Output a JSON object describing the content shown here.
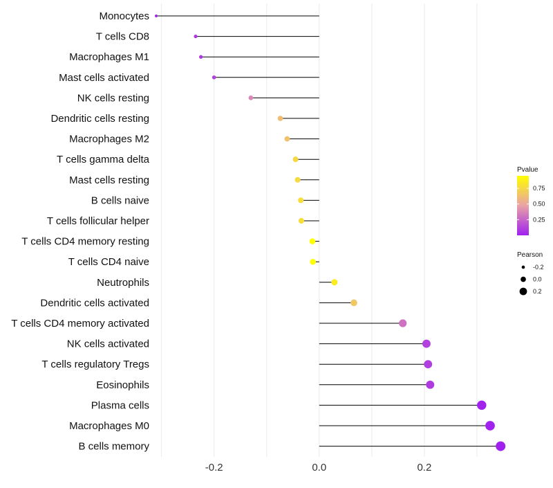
{
  "chart_data": {
    "type": "lollipop",
    "title": "",
    "xlabel": "",
    "ylabel": "",
    "xlim": [
      -0.31,
      0.35
    ],
    "x_ticks": [
      -0.2,
      0.0,
      0.2
    ],
    "x_tick_labels": [
      "-0.2",
      "0.0",
      "0.2"
    ],
    "grid": true,
    "colors": {
      "low": "#a020f0",
      "mid": "#e8a2a6",
      "high": "#ffff00",
      "stem": "#000000",
      "grid": "#ebebeb"
    },
    "categories": [
      "Monocytes",
      "T cells CD8",
      "Macrophages M1",
      "Mast cells activated",
      "NK cells resting",
      "Dendritic cells resting",
      "Macrophages M2",
      "T cells gamma delta",
      "Mast cells resting",
      "B cells naive",
      "T cells follicular helper",
      "T cells CD4 memory resting",
      "T cells CD4 naive",
      "Neutrophils",
      "Dendritic cells activated",
      "T cells CD4 memory activated",
      "NK cells activated",
      "T cells regulatory  Tregs ",
      "Eosinophils",
      "Plasma cells",
      "Macrophages M0",
      "B cells memory"
    ],
    "pearson": [
      -0.31,
      -0.235,
      -0.225,
      -0.2,
      -0.13,
      -0.074,
      -0.061,
      -0.045,
      -0.041,
      -0.035,
      -0.034,
      -0.013,
      -0.012,
      0.029,
      0.066,
      0.159,
      0.204,
      0.207,
      0.211,
      0.309,
      0.325,
      0.345
    ],
    "pvalue": [
      0.02,
      0.08,
      0.09,
      0.12,
      0.38,
      0.62,
      0.64,
      0.75,
      0.76,
      0.78,
      0.78,
      0.95,
      0.95,
      0.85,
      0.66,
      0.3,
      0.12,
      0.11,
      0.1,
      0.01,
      0.005,
      0.001
    ],
    "legend": {
      "color": {
        "title": "Pvalue",
        "ticks": [
          0.75,
          0.5,
          0.25
        ],
        "tick_labels": [
          "0.75",
          "0.50",
          "0.25"
        ],
        "range": [
          0.0,
          0.95
        ]
      },
      "size": {
        "title": "Pearson",
        "values": [
          -0.2,
          0.0,
          0.2
        ],
        "labels": [
          "-0.2",
          "0.0",
          "0.2"
        ]
      }
    }
  }
}
